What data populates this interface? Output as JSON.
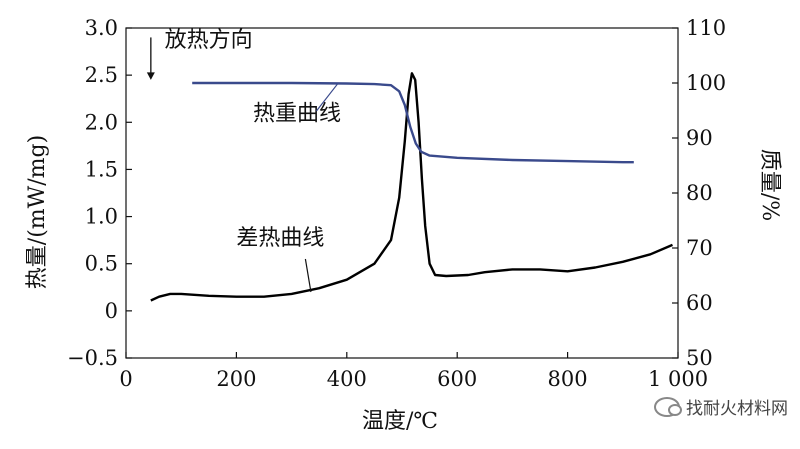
{
  "chart_data": {
    "type": "line",
    "xlabel": "温度/℃",
    "ylabel_left": "热量/(mW/mg)",
    "ylabel_right": "质量/%",
    "x_range": [
      0,
      1000
    ],
    "y_left_range": [
      -0.5,
      3.0
    ],
    "y_right_range": [
      50,
      110
    ],
    "x_ticks": [
      "0",
      "200",
      "400",
      "600",
      "800",
      "1 000"
    ],
    "x_tick_values": [
      0,
      200,
      400,
      600,
      800,
      1000
    ],
    "y_left_ticks": [
      "−0.5",
      "0",
      "0.5",
      "1.0",
      "1.5",
      "2.0",
      "2.5",
      "3.0"
    ],
    "y_left_tick_values": [
      -0.5,
      0,
      0.5,
      1.0,
      1.5,
      2.0,
      2.5,
      3.0
    ],
    "y_right_ticks": [
      "50",
      "60",
      "70",
      "80",
      "90",
      "100",
      "110"
    ],
    "y_right_tick_values": [
      50,
      60,
      70,
      80,
      90,
      100,
      110
    ],
    "grid": false,
    "series": [
      {
        "name": "差热曲线",
        "axis": "left",
        "color": "#000000",
        "points": [
          [
            45,
            0.11
          ],
          [
            60,
            0.15
          ],
          [
            80,
            0.18
          ],
          [
            100,
            0.18
          ],
          [
            150,
            0.16
          ],
          [
            200,
            0.15
          ],
          [
            250,
            0.15
          ],
          [
            300,
            0.18
          ],
          [
            350,
            0.24
          ],
          [
            400,
            0.33
          ],
          [
            450,
            0.5
          ],
          [
            480,
            0.75
          ],
          [
            495,
            1.2
          ],
          [
            505,
            1.8
          ],
          [
            512,
            2.3
          ],
          [
            518,
            2.52
          ],
          [
            524,
            2.45
          ],
          [
            530,
            2.0
          ],
          [
            536,
            1.4
          ],
          [
            542,
            0.9
          ],
          [
            550,
            0.5
          ],
          [
            560,
            0.38
          ],
          [
            580,
            0.37
          ],
          [
            620,
            0.38
          ],
          [
            650,
            0.41
          ],
          [
            700,
            0.44
          ],
          [
            750,
            0.44
          ],
          [
            800,
            0.42
          ],
          [
            850,
            0.46
          ],
          [
            900,
            0.52
          ],
          [
            950,
            0.6
          ],
          [
            990,
            0.7
          ]
        ]
      },
      {
        "name": "热重曲线",
        "axis": "right",
        "color": "#3a4a8c",
        "points": [
          [
            120,
            100
          ],
          [
            200,
            100
          ],
          [
            300,
            100
          ],
          [
            400,
            99.9
          ],
          [
            450,
            99.8
          ],
          [
            480,
            99.6
          ],
          [
            495,
            98.5
          ],
          [
            505,
            96
          ],
          [
            515,
            92
          ],
          [
            525,
            89
          ],
          [
            535,
            87.5
          ],
          [
            550,
            86.8
          ],
          [
            600,
            86.4
          ],
          [
            700,
            86
          ],
          [
            800,
            85.8
          ],
          [
            900,
            85.6
          ],
          [
            920,
            85.6
          ]
        ]
      }
    ],
    "annotations": [
      {
        "text": "放热方向",
        "x": 70,
        "y_left": 2.8
      },
      {
        "text": "热重曲线",
        "x": 230,
        "y_left": 2.02
      },
      {
        "text": "差热曲线",
        "x": 200,
        "y_left": 0.7
      }
    ]
  },
  "watermark": {
    "text": "找耐火材料网",
    "icon": "wechat-icon"
  }
}
